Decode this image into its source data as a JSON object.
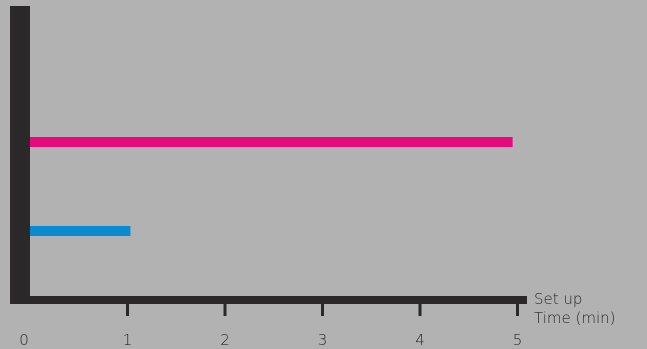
{
  "colors": {
    "background": "#b1b2b1",
    "axis": "#2a2828",
    "bar_pink": "#e8097c",
    "bar_blue": "#0a8ad1"
  },
  "chart_data": {
    "type": "bar",
    "orientation": "horizontal",
    "xlabel": "Set up Time (min)",
    "xlabel_lines": [
      "Set up",
      "Time (min)"
    ],
    "x_ticks": [
      0,
      1,
      2,
      3,
      4,
      5
    ],
    "xlim": [
      0,
      5.3
    ],
    "grid": false,
    "series": [
      {
        "value": 4.95,
        "color": "#e8097c"
      },
      {
        "value": 1.03,
        "color": "#0a8ad1"
      }
    ]
  }
}
